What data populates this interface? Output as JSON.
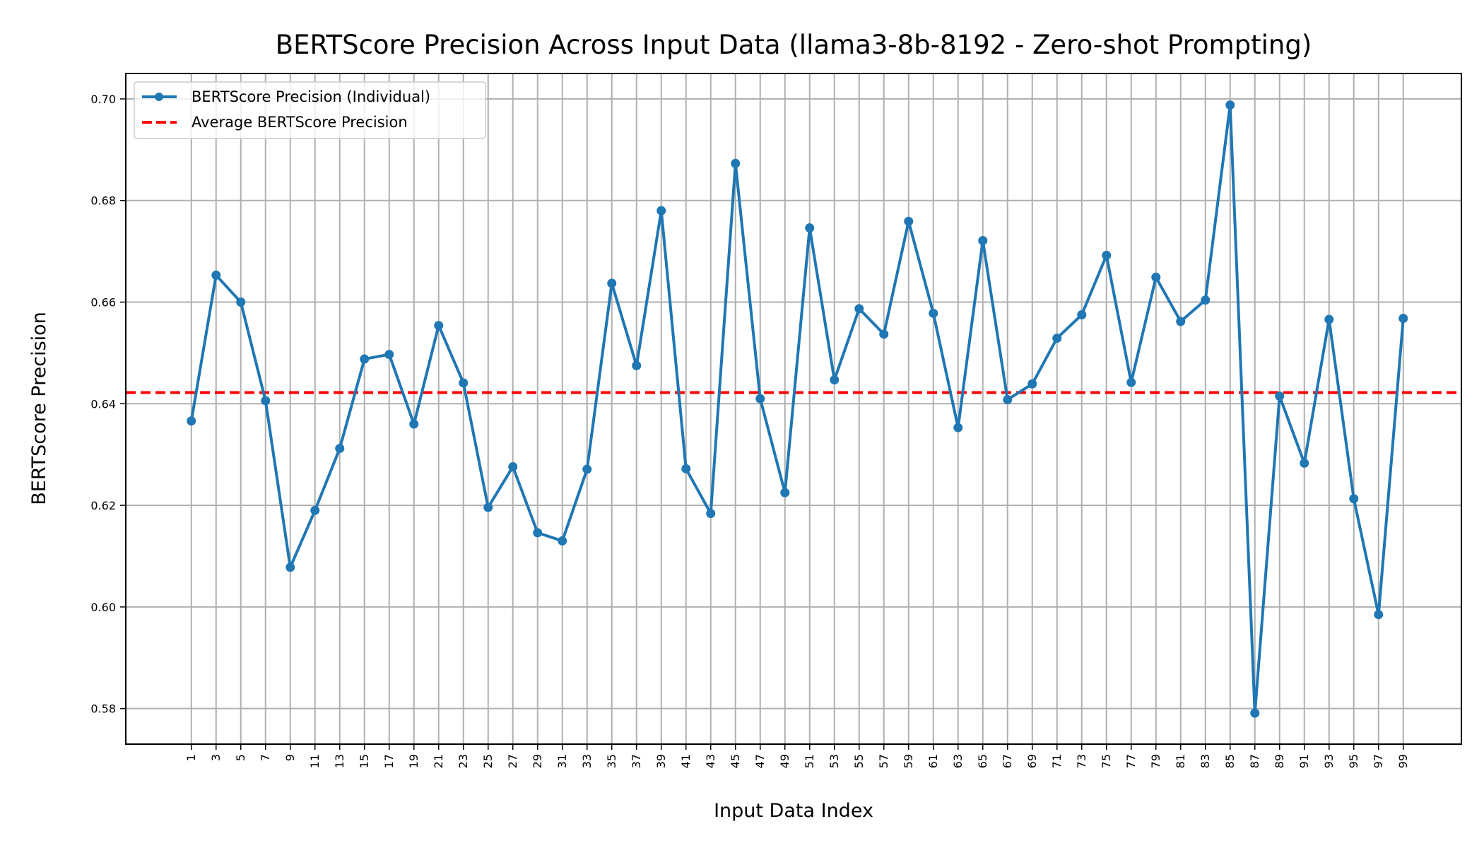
{
  "chart_data": {
    "type": "line",
    "title": "BERTScore Precision Across Input Data (llama3-8b-8192 - Zero-shot Prompting)",
    "xlabel": "Input Data Index",
    "ylabel": "BERTScore Precision",
    "x": [
      1,
      3,
      5,
      7,
      9,
      11,
      13,
      15,
      17,
      19,
      21,
      23,
      25,
      27,
      29,
      31,
      33,
      35,
      37,
      39,
      41,
      43,
      45,
      47,
      49,
      51,
      53,
      55,
      57,
      59,
      61,
      63,
      65,
      67,
      69,
      71,
      73,
      75,
      77,
      79,
      81,
      83,
      85,
      87,
      89,
      91,
      93,
      95,
      97,
      99
    ],
    "xticks": [
      "1",
      "3",
      "5",
      "7",
      "9",
      "11",
      "13",
      "15",
      "17",
      "19",
      "21",
      "23",
      "25",
      "27",
      "29",
      "31",
      "33",
      "35",
      "37",
      "39",
      "41",
      "43",
      "45",
      "47",
      "49",
      "51",
      "53",
      "55",
      "57",
      "59",
      "61",
      "63",
      "65",
      "67",
      "69",
      "71",
      "73",
      "75",
      "77",
      "79",
      "81",
      "83",
      "85",
      "87",
      "89",
      "91",
      "93",
      "95",
      "97",
      "99"
    ],
    "xlim": [
      -4.3,
      103.7
    ],
    "ylim": [
      0.573,
      0.705
    ],
    "yticks": [
      0.58,
      0.6,
      0.62,
      0.64,
      0.66,
      0.68,
      0.7
    ],
    "ytick_labels": [
      "0.58",
      "0.60",
      "0.62",
      "0.64",
      "0.66",
      "0.68",
      "0.70"
    ],
    "grid": true,
    "legend_position": "top-left",
    "series": [
      {
        "name": "BERTScore Precision (Individual)",
        "color": "#1f77b4",
        "style": "line-with-markers",
        "values": [
          0.6366,
          0.6653,
          0.66,
          0.6406,
          0.6078,
          0.619,
          0.6312,
          0.6488,
          0.6497,
          0.636,
          0.6554,
          0.6441,
          0.6196,
          0.6276,
          0.6146,
          0.613,
          0.6271,
          0.6637,
          0.6475,
          0.678,
          0.6272,
          0.6184,
          0.6873,
          0.641,
          0.6225,
          0.6746,
          0.6447,
          0.6587,
          0.6537,
          0.6759,
          0.6578,
          0.6353,
          0.6721,
          0.6408,
          0.6439,
          0.6529,
          0.6575,
          0.6692,
          0.6442,
          0.6649,
          0.6562,
          0.6604,
          0.6988,
          0.5791,
          0.6415,
          0.6283,
          0.6566,
          0.6213,
          0.5985,
          0.6568
        ]
      },
      {
        "name": "Average BERTScore Precision",
        "color": "#ff0000",
        "style": "dashed-horizontal",
        "value": 0.6422
      }
    ]
  }
}
